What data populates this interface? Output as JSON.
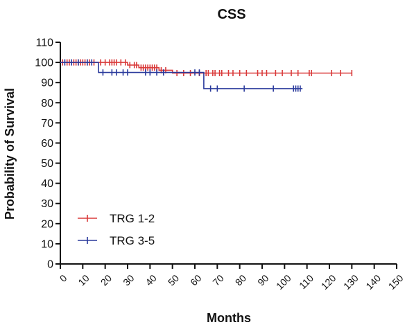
{
  "chart_data": {
    "type": "line",
    "title": "CSS",
    "xlabel": "Months",
    "ylabel": "Probability of Survival",
    "xlim": [
      0,
      150
    ],
    "ylim": [
      0,
      110
    ],
    "xticks": [
      0,
      10,
      20,
      30,
      40,
      50,
      60,
      70,
      80,
      90,
      100,
      110,
      120,
      130,
      140,
      150
    ],
    "yticks": [
      0,
      10,
      20,
      30,
      40,
      50,
      60,
      70,
      80,
      90,
      100,
      110
    ],
    "grid": false,
    "legend_position": "bottom-left",
    "series": [
      {
        "name": "TRG 1-2",
        "color": "#d93a3a",
        "steps": [
          [
            0,
            100
          ],
          [
            30,
            100
          ],
          [
            30,
            98.7
          ],
          [
            35,
            98.7
          ],
          [
            35,
            97.4
          ],
          [
            44,
            97.4
          ],
          [
            44,
            96.1
          ],
          [
            50,
            96.1
          ],
          [
            50,
            94.7
          ],
          [
            130,
            94.7
          ]
        ],
        "censor_x": [
          1,
          3,
          4,
          6,
          7,
          8,
          9,
          10,
          11,
          12,
          13,
          15,
          18,
          20,
          22,
          23,
          24,
          25,
          27,
          29,
          31,
          33,
          34,
          36,
          37,
          38,
          39,
          40,
          41,
          42,
          43,
          45,
          47,
          52,
          55,
          58,
          62,
          65,
          66,
          68,
          69,
          71,
          72,
          75,
          77,
          80,
          83,
          88,
          90,
          92,
          96,
          99,
          103,
          106,
          111,
          112,
          121,
          125,
          130
        ]
      },
      {
        "name": "TRG 3-5",
        "color": "#2a3a9c",
        "steps": [
          [
            0,
            100
          ],
          [
            17,
            100
          ],
          [
            17,
            95
          ],
          [
            64,
            95
          ],
          [
            64,
            87
          ],
          [
            108,
            87
          ]
        ],
        "censor_x": [
          2,
          5,
          8,
          12,
          14,
          19,
          23,
          25,
          28,
          30,
          38,
          40,
          43,
          46,
          60,
          62,
          67,
          70,
          82,
          95,
          104,
          105,
          106,
          107
        ]
      }
    ]
  }
}
